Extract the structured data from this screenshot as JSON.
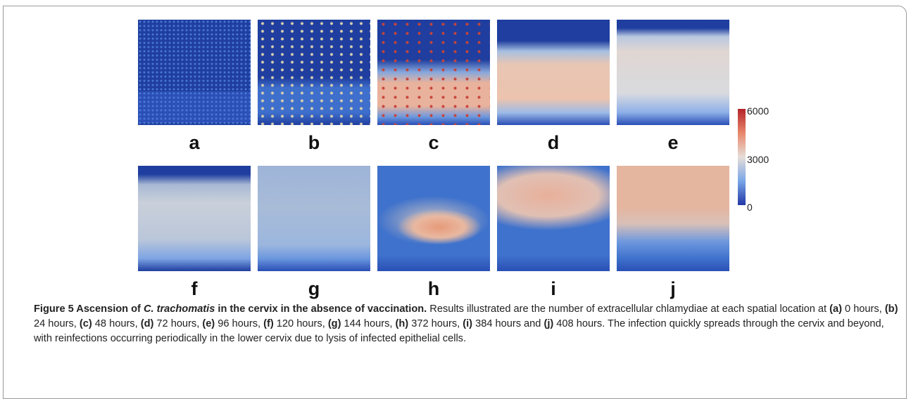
{
  "figure": {
    "panels": [
      {
        "label": "a"
      },
      {
        "label": "b"
      },
      {
        "label": "c"
      },
      {
        "label": "d"
      },
      {
        "label": "e"
      },
      {
        "label": "f"
      },
      {
        "label": "g"
      },
      {
        "label": "h"
      },
      {
        "label": "i"
      },
      {
        "label": "j"
      }
    ],
    "colorbar": {
      "lim": [
        0,
        6000
      ],
      "ticks": [
        6000,
        3000,
        0
      ]
    },
    "caption": [
      {
        "text": "Figure 5 Ascension of ",
        "style": "bold"
      },
      {
        "text": "C. trachomatis",
        "style": "bold-italic"
      },
      {
        "text": " in the cervix in the absence of vaccination.",
        "style": "bold"
      },
      {
        "text": " Results illustrated are the number of extracellular chlamydiae at each spatial location at ",
        "style": "normal"
      },
      {
        "text": "(a)",
        "style": "bold"
      },
      {
        "text": " 0 hours, ",
        "style": "normal"
      },
      {
        "text": "(b)",
        "style": "bold"
      },
      {
        "text": " 24 hours, ",
        "style": "normal"
      },
      {
        "text": "(c)",
        "style": "bold"
      },
      {
        "text": " 48 hours, ",
        "style": "normal"
      },
      {
        "text": "(d)",
        "style": "bold"
      },
      {
        "text": " 72 hours, ",
        "style": "normal"
      },
      {
        "text": "(e)",
        "style": "bold"
      },
      {
        "text": " 96 hours, ",
        "style": "normal"
      },
      {
        "text": "(f)",
        "style": "bold"
      },
      {
        "text": " 120 hours, ",
        "style": "normal"
      },
      {
        "text": "(g)",
        "style": "bold"
      },
      {
        "text": " 144 hours, ",
        "style": "normal"
      },
      {
        "text": "(h)",
        "style": "bold"
      },
      {
        "text": " 372 hours, ",
        "style": "normal"
      },
      {
        "text": "(i)",
        "style": "bold"
      },
      {
        "text": " 384 hours and ",
        "style": "normal"
      },
      {
        "text": "(j)",
        "style": "bold"
      },
      {
        "text": " 408 hours. The infection quickly spreads through the cervix and beyond, with reinfections occurring periodically in the lower cervix due to lysis of infected epithelial cells.",
        "style": "normal"
      }
    ]
  }
}
